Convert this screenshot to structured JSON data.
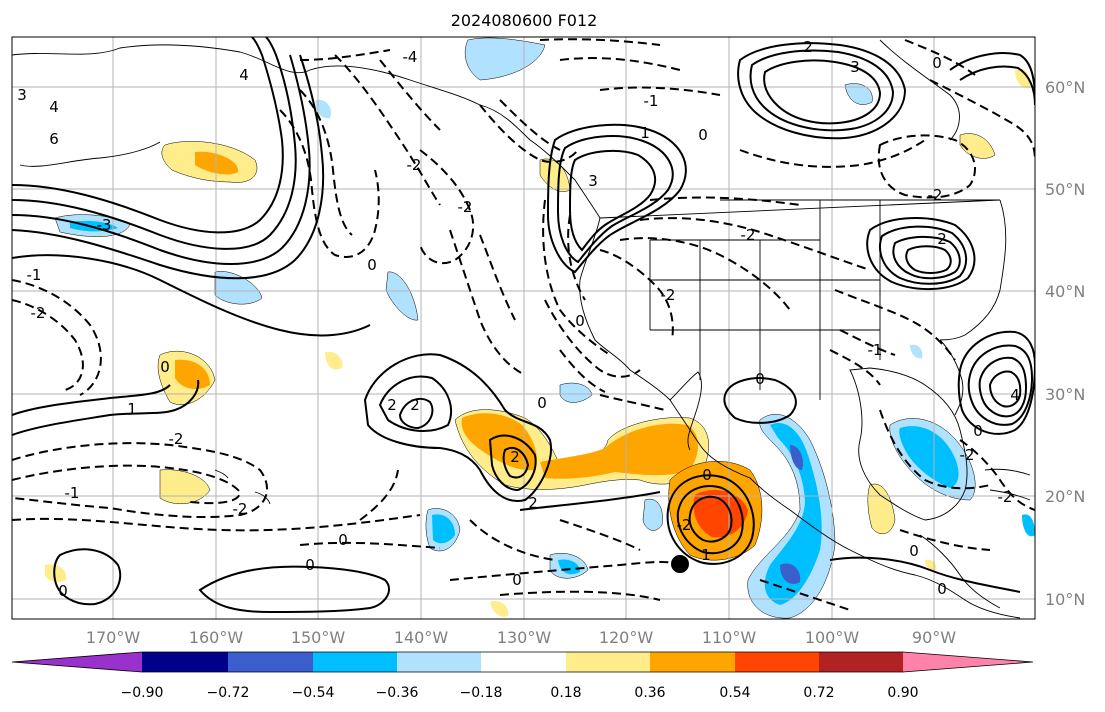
{
  "title": "2024080600 F012",
  "lon_labels": [
    "170°W",
    "160°W",
    "150°W",
    "140°W",
    "130°W",
    "120°W",
    "110°W",
    "100°W",
    "90°W"
  ],
  "lat_labels": [
    "60°N",
    "50°N",
    "40°N",
    "30°N",
    "20°N",
    "10°N"
  ],
  "colorbar": {
    "tick_labels": [
      "−0.90",
      "−0.72",
      "−0.54",
      "−0.36",
      "−0.18",
      "0.18",
      "0.36",
      "0.54",
      "0.72",
      "0.90"
    ],
    "colors": [
      "#9932cc",
      "#00008b",
      "#3a5fcd",
      "#00bfff",
      "#b0e2ff",
      "#ffffff",
      "#ffec8b",
      "#ffa500",
      "#ff4500",
      "#b22222",
      "#ff82ab"
    ]
  },
  "contour_labels": [
    "3",
    "4",
    "6",
    "-1",
    "-2",
    "-3",
    "2",
    "1",
    "0",
    "-4"
  ],
  "storm_marker": "black dot"
}
